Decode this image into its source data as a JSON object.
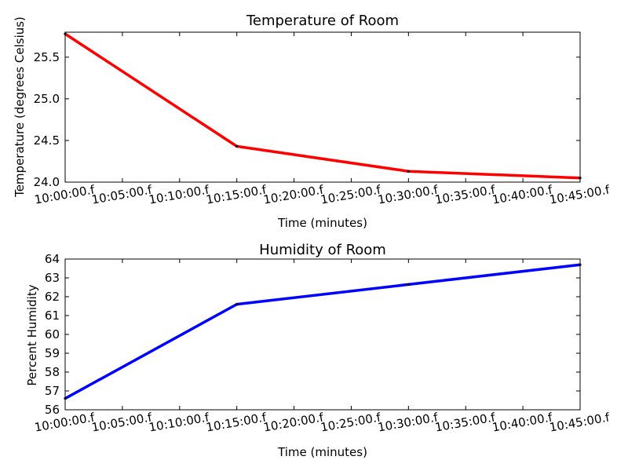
{
  "chart_data": [
    {
      "type": "line",
      "title": "Temperature of Room",
      "xlabel": "Time (minutes)",
      "ylabel": "Temperature (degrees Celsius)",
      "x": [
        "10:00:00",
        "10:15:00",
        "10:30:00",
        "10:45:00"
      ],
      "xlim": [
        "10:00:00",
        "10:45:00"
      ],
      "x_ticks": [
        "10:00:00.f",
        "10:05:00.f",
        "10:10:00.f",
        "10:15:00.f",
        "10:20:00.f",
        "10:25:00.f",
        "10:30:00.f",
        "10:35:00.f",
        "10:40:00.f",
        "10:45:00.f"
      ],
      "ylim": [
        24.0,
        25.8
      ],
      "y_ticks": [
        "24.0",
        "24.5",
        "25.0",
        "25.5"
      ],
      "series": [
        {
          "values": [
            25.78,
            24.43,
            24.13,
            24.05
          ],
          "color": "#ff0000"
        }
      ],
      "grid": false
    },
    {
      "type": "line",
      "title": "Humidity of Room",
      "xlabel": "Time (minutes)",
      "ylabel": "Percent Humidity",
      "x": [
        "10:00:00",
        "10:15:00",
        "10:30:00",
        "10:45:00"
      ],
      "xlim": [
        "10:00:00",
        "10:45:00"
      ],
      "x_ticks": [
        "10:00:00.f",
        "10:05:00.f",
        "10:10:00.f",
        "10:15:00.f",
        "10:20:00.f",
        "10:25:00.f",
        "10:30:00.f",
        "10:35:00.f",
        "10:40:00.f",
        "10:45:00.f"
      ],
      "ylim": [
        56,
        64
      ],
      "y_ticks": [
        "56",
        "57",
        "58",
        "59",
        "60",
        "61",
        "62",
        "63",
        "64"
      ],
      "series": [
        {
          "values": [
            56.6,
            61.6,
            62.65,
            63.7
          ],
          "color": "#0000ff"
        }
      ],
      "grid": false
    }
  ]
}
